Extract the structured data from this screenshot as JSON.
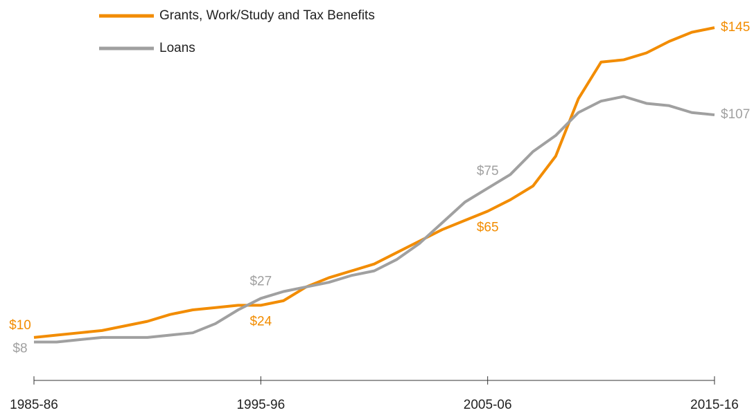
{
  "chart_data": {
    "type": "line",
    "categories": [
      "1985-86",
      null,
      null,
      null,
      null,
      null,
      null,
      null,
      null,
      null,
      "1995-96",
      null,
      null,
      null,
      null,
      null,
      null,
      null,
      null,
      null,
      "2005-06",
      null,
      null,
      null,
      null,
      null,
      null,
      null,
      null,
      null,
      "2015-16"
    ],
    "ylim": [
      0,
      145
    ],
    "legend": "top-left",
    "grid": false,
    "series": [
      {
        "name": "Grants, Work/Study and Tax Benefits",
        "color": "#f28c00",
        "values": [
          10,
          11,
          12,
          13,
          15,
          17,
          20,
          22,
          23,
          24,
          24,
          26,
          32,
          36,
          39,
          42,
          47,
          52,
          57,
          61,
          65,
          70,
          76,
          89,
          114,
          130,
          131,
          134,
          139,
          143,
          145
        ],
        "value_labels": [
          "$10",
          null,
          null,
          null,
          null,
          null,
          null,
          null,
          null,
          null,
          "$24",
          null,
          null,
          null,
          null,
          null,
          null,
          null,
          null,
          null,
          "$65",
          null,
          null,
          null,
          null,
          null,
          null,
          null,
          null,
          null,
          "$145"
        ]
      },
      {
        "name": "Loans",
        "color": "#a0a0a0",
        "values": [
          8,
          8,
          9,
          10,
          10,
          10,
          11,
          12,
          16,
          22,
          27,
          30,
          32,
          34,
          37,
          39,
          44,
          51,
          60,
          69,
          75,
          81,
          91,
          98,
          108,
          113,
          115,
          112,
          111,
          108,
          107
        ],
        "value_labels": [
          "$8",
          null,
          null,
          null,
          null,
          null,
          null,
          null,
          null,
          null,
          "$27",
          null,
          null,
          null,
          null,
          null,
          null,
          null,
          null,
          null,
          "$75",
          null,
          null,
          null,
          null,
          null,
          null,
          null,
          null,
          null,
          "$107"
        ]
      }
    ]
  }
}
